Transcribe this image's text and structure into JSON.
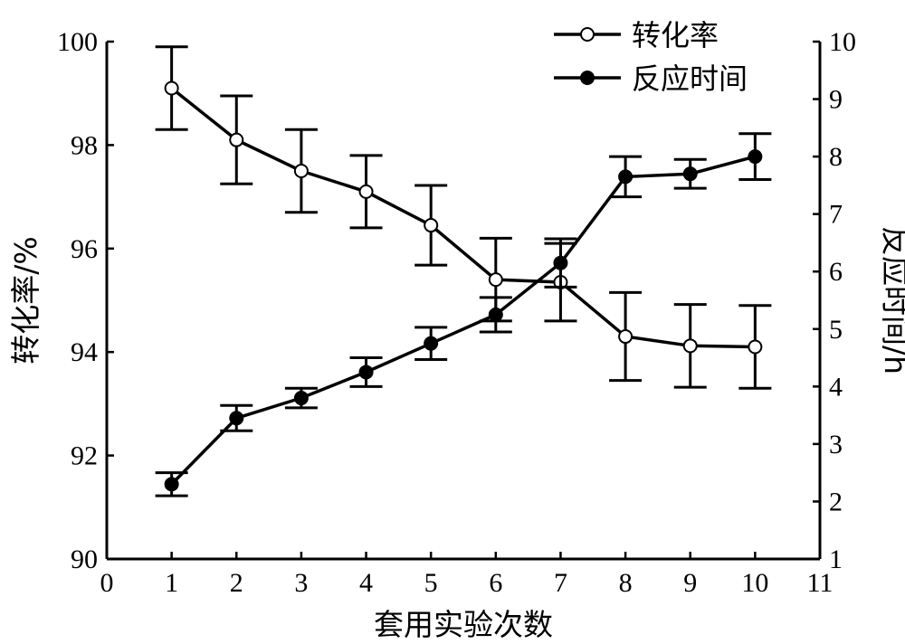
{
  "chart_data": {
    "type": "line",
    "xlabel": "套用实验次数",
    "ylabel_left": "转化率/%",
    "ylabel_right": "反应时间/h",
    "xlim": [
      0,
      11
    ],
    "ylim_left": [
      90,
      100
    ],
    "ylim_right": [
      1,
      10
    ],
    "x_ticks": [
      0,
      1,
      2,
      3,
      4,
      5,
      6,
      7,
      8,
      9,
      10,
      11
    ],
    "y_ticks_left": [
      90,
      92,
      94,
      96,
      98,
      100
    ],
    "y_ticks_right": [
      1,
      2,
      3,
      4,
      5,
      6,
      7,
      8,
      9,
      10
    ],
    "legend_position": "top-right",
    "series": [
      {
        "name": "转化率",
        "axis": "left",
        "marker": "open-circle",
        "x": [
          1,
          2,
          3,
          4,
          5,
          6,
          7,
          8,
          9,
          10
        ],
        "values": [
          99.1,
          98.1,
          97.5,
          97.1,
          96.45,
          95.4,
          95.35,
          94.3,
          94.12,
          94.1
        ],
        "error": [
          0.8,
          0.85,
          0.8,
          0.7,
          0.77,
          0.8,
          0.75,
          0.85,
          0.8,
          0.8
        ]
      },
      {
        "name": "反应时间",
        "axis": "right",
        "marker": "filled-circle",
        "x": [
          1,
          2,
          3,
          4,
          5,
          6,
          7,
          8,
          9,
          10
        ],
        "values": [
          2.3,
          3.45,
          3.8,
          4.25,
          4.75,
          5.25,
          6.15,
          7.65,
          7.7,
          8.0
        ],
        "error": [
          0.2,
          0.22,
          0.17,
          0.25,
          0.28,
          0.3,
          0.42,
          0.35,
          0.25,
          0.4
        ]
      }
    ]
  }
}
